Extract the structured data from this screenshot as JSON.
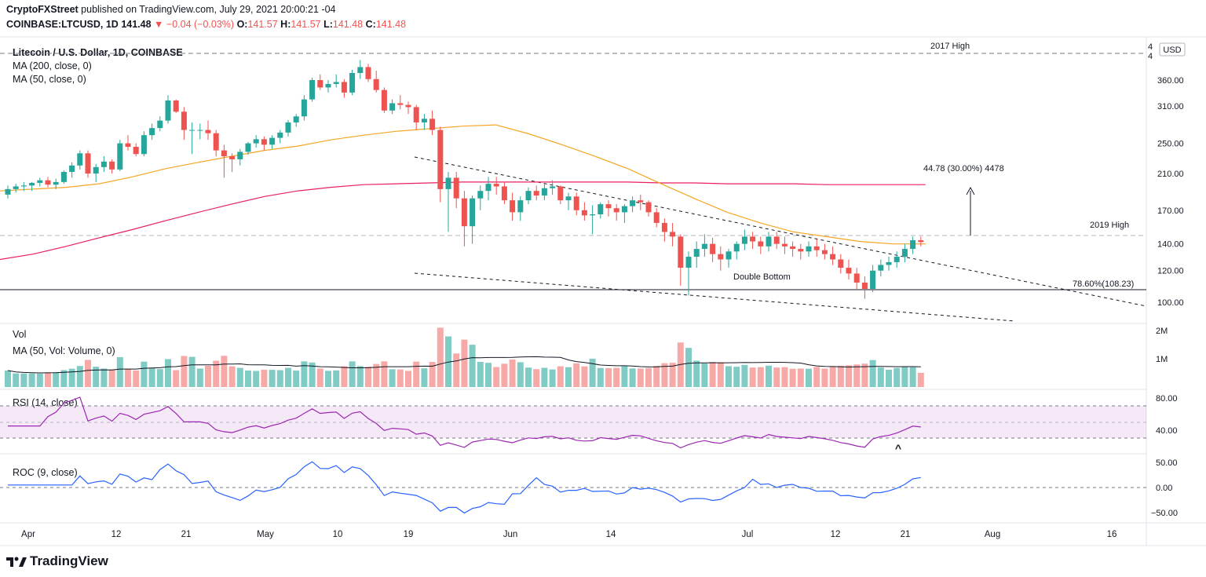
{
  "header": {
    "author": "CryptoFXStreet",
    "published": "published on TradingView.com, July 29, 2021 20:00:21 -04",
    "symbol": "COINBASE:LTCUSD, 1D",
    "last": "141.48",
    "change": "−0.04 (−0.03%)",
    "o_label": "O:",
    "o": "141.57",
    "h_label": "H:",
    "h": "141.57",
    "l_label": "L:",
    "l": "141.48",
    "c_label": "C:",
    "c": "141.48"
  },
  "legend": {
    "title": "Litecoin / U.S. Dollar, 1D, COINBASE",
    "ma200": "MA (200, close, 0)",
    "ma50": "MA (50, close, 0)",
    "vol": "Vol",
    "vol_ma": "MA (50, Vol: Volume, 0)",
    "rsi": "RSI (14, close)",
    "roc": "ROC (9, close)"
  },
  "colors": {
    "up": "#26a69a",
    "down": "#ef5350",
    "ma50": "#f5a623",
    "ma200": "#e91e63",
    "rsi": "#9c27b0",
    "roc": "#2962ff"
  },
  "chart_data": {
    "type": "candlestick",
    "title": "Litecoin / U.S. Dollar, 1D, COINBASE",
    "currency": "USD",
    "price_axis": {
      "scale": "log",
      "ticks": [
        100,
        120,
        140,
        170,
        210,
        250,
        310,
        360
      ]
    },
    "x_ticks": [
      "Apr",
      "12",
      "21",
      "May",
      "10",
      "19",
      "Jun",
      "14",
      "Jul",
      "12",
      "21",
      "Aug",
      "16"
    ],
    "ohlc_approx": [
      [
        186,
        196,
        182,
        192
      ],
      [
        192,
        198,
        188,
        195
      ],
      [
        195,
        200,
        190,
        196
      ],
      [
        196,
        200,
        190,
        199
      ],
      [
        199,
        205,
        195,
        202
      ],
      [
        202,
        206,
        194,
        197
      ],
      [
        197,
        204,
        192,
        200
      ],
      [
        200,
        214,
        198,
        212
      ],
      [
        212,
        224,
        205,
        220
      ],
      [
        220,
        240,
        215,
        236
      ],
      [
        236,
        240,
        205,
        210
      ],
      [
        210,
        222,
        200,
        218
      ],
      [
        218,
        232,
        212,
        225
      ],
      [
        225,
        228,
        210,
        215
      ],
      [
        215,
        255,
        213,
        250
      ],
      [
        250,
        262,
        240,
        245
      ],
      [
        245,
        250,
        232,
        235
      ],
      [
        235,
        268,
        232,
        262
      ],
      [
        262,
        280,
        255,
        273
      ],
      [
        273,
        292,
        268,
        285
      ],
      [
        285,
        330,
        280,
        320
      ],
      [
        320,
        322,
        298,
        300
      ],
      [
        300,
        308,
        255,
        270
      ],
      [
        270,
        282,
        235,
        270
      ],
      [
        270,
        280,
        256,
        270
      ],
      [
        270,
        285,
        255,
        265
      ],
      [
        265,
        270,
        232,
        240
      ],
      [
        240,
        248,
        205,
        232
      ],
      [
        232,
        236,
        212,
        228
      ],
      [
        228,
        242,
        220,
        238
      ],
      [
        238,
        252,
        234,
        250
      ],
      [
        250,
        262,
        244,
        256
      ],
      [
        256,
        260,
        240,
        248
      ],
      [
        248,
        262,
        242,
        258
      ],
      [
        258,
        270,
        250,
        266
      ],
      [
        266,
        286,
        260,
        282
      ],
      [
        282,
        296,
        275,
        292
      ],
      [
        292,
        330,
        285,
        322
      ],
      [
        322,
        365,
        318,
        360
      ],
      [
        360,
        372,
        340,
        345
      ],
      [
        345,
        360,
        335,
        352
      ],
      [
        352,
        372,
        345,
        356
      ],
      [
        356,
        362,
        325,
        335
      ],
      [
        335,
        382,
        330,
        375
      ],
      [
        375,
        404,
        362,
        388
      ],
      [
        388,
        395,
        356,
        362
      ],
      [
        362,
        380,
        335,
        340
      ],
      [
        340,
        345,
        298,
        302
      ],
      [
        302,
        322,
        296,
        315
      ],
      [
        315,
        330,
        304,
        312
      ],
      [
        312,
        318,
        296,
        308
      ],
      [
        308,
        312,
        270,
        282
      ],
      [
        282,
        296,
        270,
        288
      ],
      [
        288,
        302,
        262,
        270
      ],
      [
        270,
        275,
        178,
        192
      ],
      [
        192,
        212,
        150,
        205
      ],
      [
        205,
        212,
        172,
        182
      ],
      [
        182,
        190,
        138,
        155
      ],
      [
        155,
        185,
        140,
        182
      ],
      [
        182,
        196,
        170,
        190
      ],
      [
        190,
        206,
        180,
        198
      ],
      [
        198,
        206,
        186,
        195
      ],
      [
        195,
        200,
        176,
        180
      ],
      [
        180,
        188,
        160,
        168
      ],
      [
        168,
        184,
        160,
        180
      ],
      [
        180,
        194,
        176,
        190
      ],
      [
        190,
        196,
        180,
        185
      ],
      [
        185,
        198,
        180,
        193
      ],
      [
        193,
        202,
        186,
        195
      ],
      [
        195,
        196,
        176,
        180
      ],
      [
        180,
        188,
        170,
        184
      ],
      [
        184,
        188,
        165,
        170
      ],
      [
        170,
        178,
        160,
        165
      ],
      [
        165,
        175,
        148,
        166
      ],
      [
        166,
        178,
        162,
        176
      ],
      [
        176,
        180,
        164,
        172
      ],
      [
        172,
        176,
        160,
        168
      ],
      [
        168,
        176,
        158,
        174
      ],
      [
        174,
        184,
        168,
        180
      ],
      [
        180,
        186,
        170,
        178
      ],
      [
        178,
        180,
        164,
        168
      ],
      [
        168,
        172,
        154,
        158
      ],
      [
        158,
        162,
        142,
        150
      ],
      [
        150,
        158,
        138,
        146
      ],
      [
        146,
        148,
        110,
        122
      ],
      [
        122,
        134,
        104,
        130
      ],
      [
        130,
        142,
        122,
        136
      ],
      [
        136,
        148,
        130,
        140
      ],
      [
        140,
        145,
        126,
        132
      ],
      [
        132,
        138,
        120,
        128
      ],
      [
        128,
        136,
        122,
        134
      ],
      [
        134,
        142,
        128,
        140
      ],
      [
        140,
        152,
        135,
        146
      ],
      [
        146,
        150,
        136,
        142
      ],
      [
        142,
        146,
        132,
        138
      ],
      [
        138,
        150,
        134,
        146
      ],
      [
        146,
        150,
        136,
        140
      ],
      [
        140,
        146,
        132,
        138
      ],
      [
        138,
        142,
        130,
        136
      ],
      [
        136,
        140,
        128,
        134
      ],
      [
        134,
        142,
        130,
        138
      ],
      [
        138,
        144,
        130,
        135
      ],
      [
        135,
        140,
        128,
        132
      ],
      [
        132,
        138,
        124,
        128
      ],
      [
        128,
        132,
        118,
        122
      ],
      [
        122,
        128,
        114,
        118
      ],
      [
        118,
        122,
        108,
        112
      ],
      [
        112,
        116,
        102,
        108
      ],
      [
        108,
        124,
        106,
        120
      ],
      [
        120,
        128,
        116,
        124
      ],
      [
        124,
        130,
        120,
        126
      ],
      [
        126,
        134,
        122,
        130
      ],
      [
        130,
        140,
        126,
        136
      ],
      [
        136,
        146,
        132,
        143
      ],
      [
        143,
        146,
        138,
        141.48
      ]
    ],
    "ma50_approx": [
      190,
      192,
      194,
      198,
      206,
      216,
      224,
      232,
      240,
      246,
      255,
      262,
      268,
      272,
      276,
      278,
      264,
      248,
      232,
      216,
      198,
      182,
      168,
      158,
      150,
      146,
      142,
      140,
      140
    ],
    "ma200_approx": [
      128,
      132,
      138,
      145,
      152,
      160,
      168,
      176,
      184,
      190,
      194,
      197,
      198,
      199,
      200,
      200,
      200,
      200,
      200,
      200,
      199,
      199,
      198,
      198,
      198,
      197,
      197,
      197,
      197
    ],
    "volume_ma_label": "MA (50, Vol: Volume, 0)",
    "volume_ticks": [
      "2M",
      "1M"
    ],
    "rsi_ticks": [
      "80.00",
      "40.00"
    ],
    "roc_ticks": [
      "50.00",
      "0.00",
      "−50.00"
    ],
    "annotations": {
      "high_2017": "2017 High",
      "high_2019": "2019 High",
      "measured_move": "44.78 (30.00%) 4478",
      "double_bottom": "Double Bottom",
      "fib": "78.60%(108.23)",
      "rsi_marker": "^"
    },
    "axis_top_labels": [
      "4",
      "4"
    ],
    "currency_badge": "USD"
  },
  "footer": {
    "brand": "TradingView"
  }
}
